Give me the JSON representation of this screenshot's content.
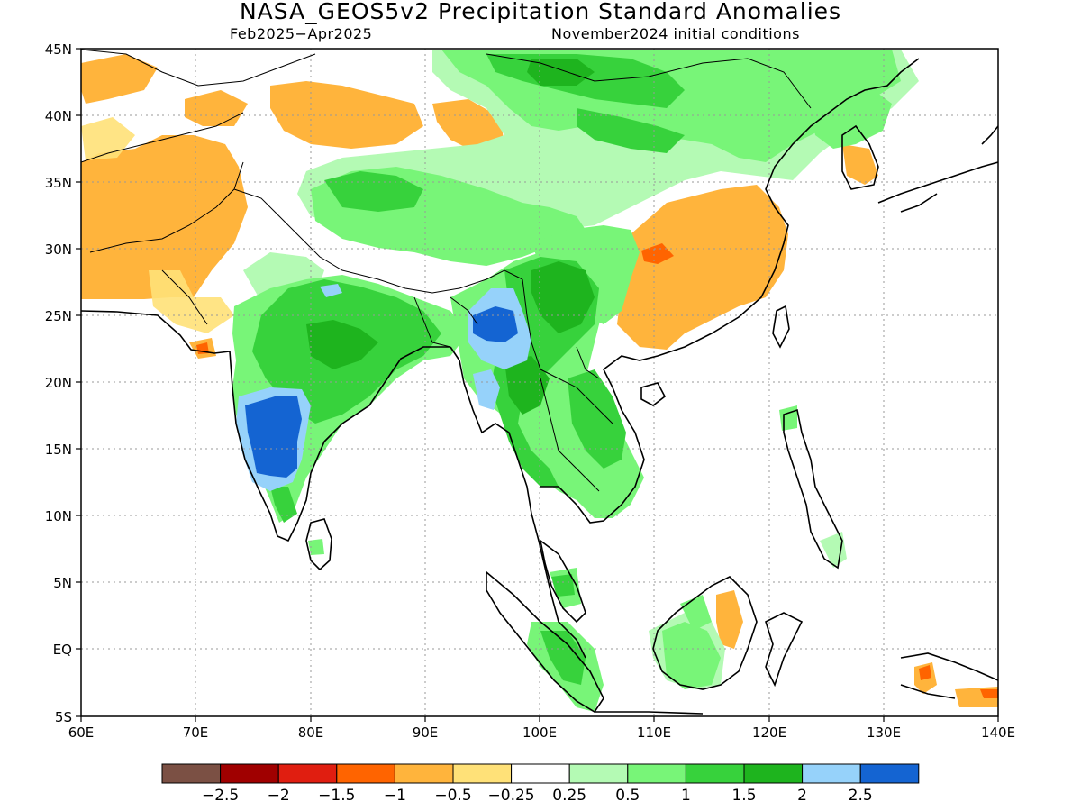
{
  "title": "NASA_GEOS5v2 Precipitation Standard Anomalies",
  "subtitle_left": "Feb2025−Apr2025",
  "subtitle_right": "November2024 initial conditions",
  "lat_labels": [
    "45N",
    "40N",
    "35N",
    "30N",
    "25N",
    "20N",
    "15N",
    "10N",
    "5N",
    "EQ",
    "5S"
  ],
  "lon_labels": [
    "60E",
    "70E",
    "80E",
    "90E",
    "100E",
    "110E",
    "120E",
    "130E",
    "140E"
  ],
  "colorbar": {
    "colors": [
      "#7b5044",
      "#a00000",
      "#e01e10",
      "#ff6400",
      "#ffb43c",
      "#ffe178",
      "#ffffff",
      "#b4fab4",
      "#78f578",
      "#37d23c",
      "#1eb41e",
      "#96d2fa",
      "#1464d2"
    ],
    "labels": [
      "−2.5",
      "−2",
      "−1.5",
      "−1",
      "−0.5",
      "−0.25",
      "0.25",
      "0.5",
      "1",
      "1.5",
      "2",
      "2.5"
    ]
  }
}
